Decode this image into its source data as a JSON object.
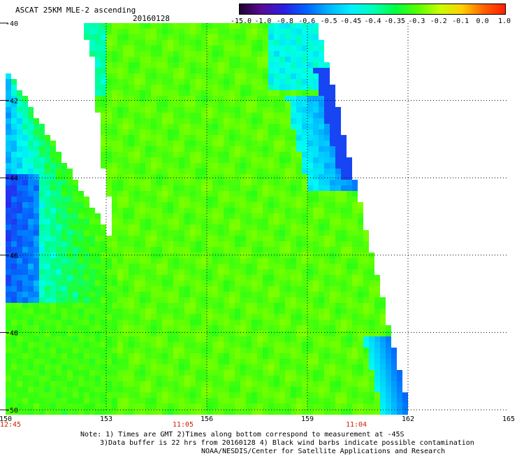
{
  "title": "ASCAT 25KM MLE-2 ascending",
  "date": "20160128",
  "colorbar": {
    "labels": [
      "-15.0",
      "-1.0",
      "-0.8",
      "-0.6",
      "-0.5",
      "-0.45",
      "-0.4",
      "-0.35",
      "-0.3",
      "-0.2",
      "-0.1",
      "0.0",
      "1.0"
    ],
    "colors": [
      "#200030",
      "#5a0a9a",
      "#2a1fe0",
      "#0062ff",
      "#00b4ff",
      "#00f0ff",
      "#00ffb8",
      "#00ff40",
      "#58ff00",
      "#c8ff00",
      "#ffd000",
      "#ff6000",
      "#ff1a00"
    ]
  },
  "map": {
    "lon_labels": [
      "150",
      "153",
      "156",
      "159",
      "162",
      "165"
    ],
    "lat_labels": [
      "-40",
      "-42",
      "-44",
      "-46",
      "-48",
      "-50"
    ],
    "time_labels": [
      "12:45",
      "11:05",
      "11:04"
    ],
    "lon_range": [
      150,
      165
    ],
    "lat_range": [
      -50,
      -40
    ]
  },
  "notes": {
    "line1": "Note: 1) Times are GMT 2)Times along bottom correspond to measurement at -45S",
    "line2": "3)Data buffer is 22 hrs from 20160128 4) Black wind barbs indicate possible contamination",
    "line3": "NOAA/NESDIS/Center for Satellite Applications and Research"
  }
}
